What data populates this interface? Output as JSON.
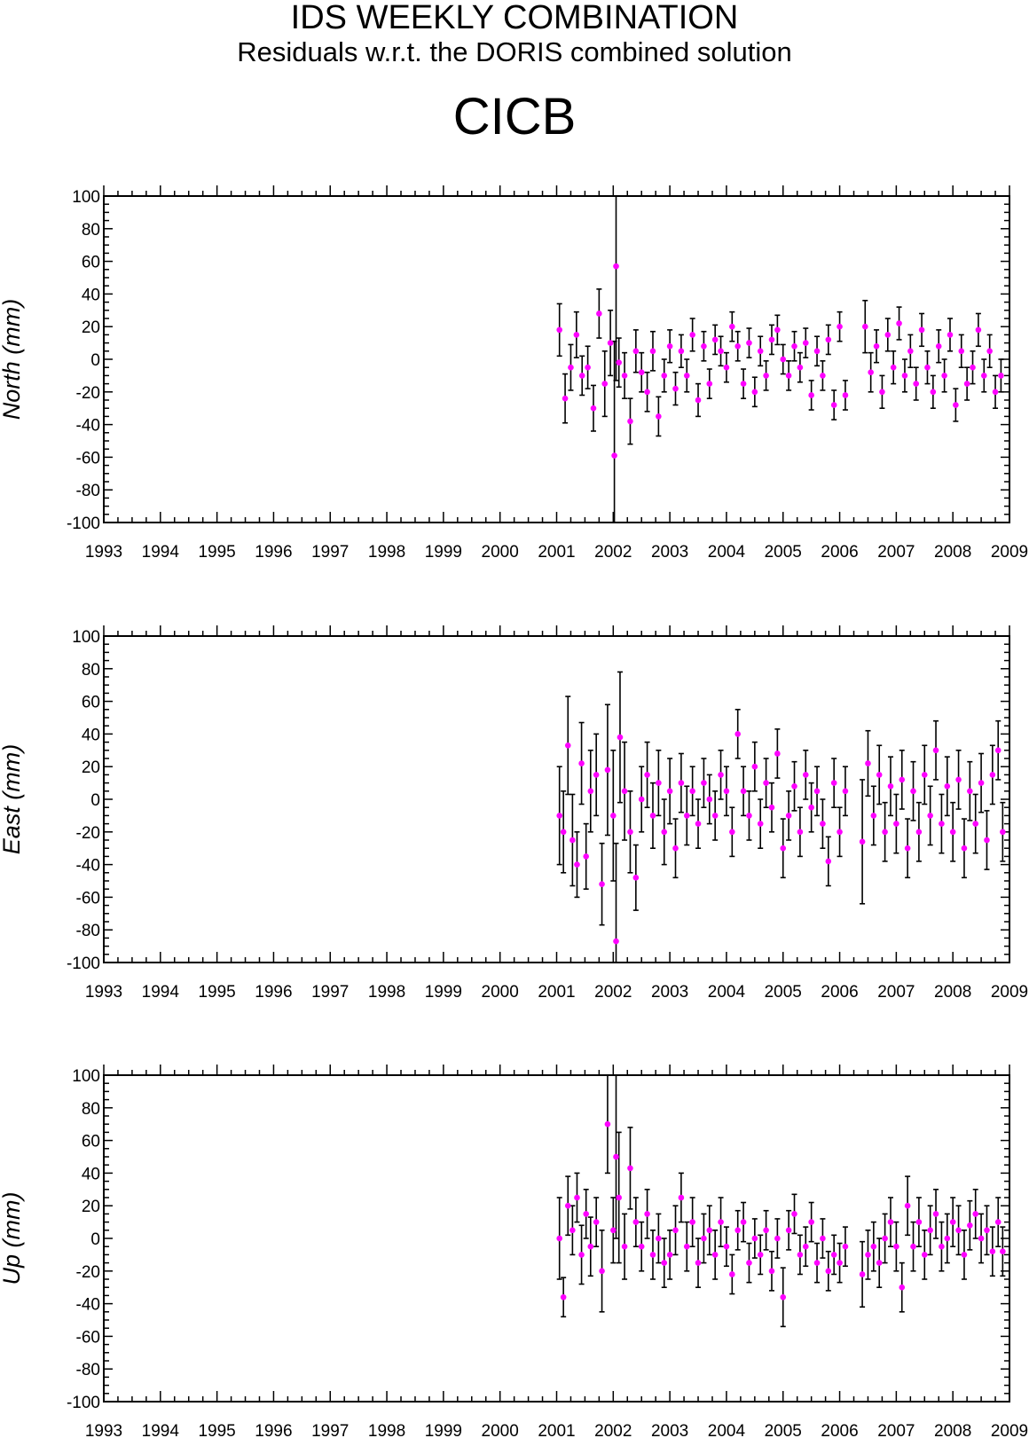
{
  "header": {
    "title": "IDS WEEKLY COMBINATION",
    "subtitle": "Residuals w.r.t. the DORIS combined solution",
    "station": "CICB"
  },
  "colors": {
    "marker": "#ff00ff",
    "errorbar": "#000000",
    "axis": "#000000"
  },
  "chart_data": [
    {
      "type": "scatter",
      "ylabel": "North (mm)",
      "xlim": [
        1993,
        2009
      ],
      "ylim": [
        -100,
        100
      ],
      "xticks": [
        "1993",
        "1994",
        "1995",
        "1996",
        "1997",
        "1998",
        "1999",
        "2000",
        "2001",
        "2002",
        "2003",
        "2004",
        "2005",
        "2006",
        "2007",
        "2008",
        "2009"
      ],
      "yticks": [
        "100",
        "80",
        "60",
        "40",
        "20",
        "0",
        "-20",
        "-40",
        "-60",
        "-80",
        "-100"
      ],
      "grid": false,
      "series": [
        {
          "x": [
            2001.05,
            2001.15,
            2001.25,
            2001.35,
            2001.45,
            2001.55,
            2001.65,
            2001.75,
            2001.85,
            2001.95,
            2002.02,
            2002.05,
            2002.1,
            2002.2,
            2002.3,
            2002.4,
            2002.5,
            2002.6,
            2002.7,
            2002.8,
            2002.9,
            2003.0,
            2003.1,
            2003.2,
            2003.3,
            2003.4,
            2003.5,
            2003.6,
            2003.7,
            2003.8,
            2003.9,
            2004.0,
            2004.1,
            2004.2,
            2004.3,
            2004.4,
            2004.5,
            2004.6,
            2004.7,
            2004.8,
            2004.9,
            2005.0,
            2005.1,
            2005.2,
            2005.3,
            2005.4,
            2005.5,
            2005.6,
            2005.7,
            2005.8,
            2005.9,
            2006.0,
            2006.1,
            2006.45,
            2006.55,
            2006.65,
            2006.75,
            2006.85,
            2006.95,
            2007.05,
            2007.15,
            2007.25,
            2007.35,
            2007.45,
            2007.55,
            2007.65,
            2007.75,
            2007.85,
            2007.95,
            2008.05,
            2008.15,
            2008.25,
            2008.35,
            2008.45,
            2008.55,
            2008.65,
            2008.75,
            2008.85
          ],
          "y": [
            18,
            -24,
            -5,
            15,
            -10,
            -5,
            -30,
            28,
            -15,
            10,
            -59,
            57,
            -2,
            -10,
            -38,
            5,
            -8,
            -20,
            5,
            -35,
            -10,
            8,
            -18,
            5,
            -10,
            15,
            -25,
            8,
            -15,
            12,
            5,
            -5,
            20,
            8,
            -15,
            10,
            -20,
            5,
            -10,
            12,
            18,
            0,
            -10,
            8,
            -5,
            10,
            -22,
            5,
            -10,
            12,
            -28,
            20,
            -22,
            20,
            -8,
            8,
            -20,
            15,
            -5,
            22,
            -10,
            5,
            -15,
            18,
            -5,
            -20,
            8,
            -10,
            15,
            -28,
            5,
            -15,
            -5,
            18,
            -10,
            5,
            -20,
            -10
          ],
          "err": [
            16,
            15,
            14,
            14,
            12,
            13,
            14,
            15,
            20,
            20,
            70,
            70,
            15,
            14,
            14,
            13,
            12,
            12,
            12,
            12,
            10,
            10,
            10,
            10,
            10,
            10,
            10,
            9,
            9,
            9,
            9,
            9,
            9,
            9,
            9,
            9,
            9,
            9,
            9,
            9,
            9,
            9,
            9,
            9,
            9,
            9,
            9,
            9,
            9,
            9,
            9,
            9,
            9,
            16,
            12,
            10,
            10,
            10,
            10,
            10,
            10,
            10,
            10,
            10,
            10,
            10,
            10,
            10,
            10,
            10,
            10,
            10,
            10,
            10,
            10,
            10,
            10,
            10
          ]
        }
      ]
    },
    {
      "type": "scatter",
      "ylabel": "East (mm)",
      "xlim": [
        1993,
        2009
      ],
      "ylim": [
        -100,
        100
      ],
      "xticks": [
        "1993",
        "1994",
        "1995",
        "1996",
        "1997",
        "1998",
        "1999",
        "2000",
        "2001",
        "2002",
        "2003",
        "2004",
        "2005",
        "2006",
        "2007",
        "2008",
        "2009"
      ],
      "yticks": [
        "100",
        "80",
        "60",
        "40",
        "20",
        "0",
        "-20",
        "-40",
        "-60",
        "-80",
        "-100"
      ],
      "grid": false,
      "series": [
        {
          "x": [
            2001.05,
            2001.12,
            2001.2,
            2001.28,
            2001.36,
            2001.44,
            2001.52,
            2001.6,
            2001.7,
            2001.8,
            2001.9,
            2002.0,
            2002.05,
            2002.12,
            2002.2,
            2002.3,
            2002.4,
            2002.5,
            2002.6,
            2002.7,
            2002.8,
            2002.9,
            2003.0,
            2003.1,
            2003.2,
            2003.3,
            2003.4,
            2003.5,
            2003.6,
            2003.7,
            2003.8,
            2003.9,
            2004.0,
            2004.1,
            2004.2,
            2004.3,
            2004.4,
            2004.5,
            2004.6,
            2004.7,
            2004.8,
            2004.9,
            2005.0,
            2005.1,
            2005.2,
            2005.3,
            2005.4,
            2005.5,
            2005.6,
            2005.7,
            2005.8,
            2005.9,
            2006.0,
            2006.1,
            2006.4,
            2006.5,
            2006.6,
            2006.7,
            2006.8,
            2006.9,
            2007.0,
            2007.1,
            2007.2,
            2007.3,
            2007.4,
            2007.5,
            2007.6,
            2007.7,
            2007.8,
            2007.9,
            2008.0,
            2008.1,
            2008.2,
            2008.3,
            2008.4,
            2008.5,
            2008.6,
            2008.7,
            2008.8,
            2008.88
          ],
          "y": [
            -10,
            -20,
            33,
            -25,
            -40,
            22,
            -35,
            5,
            15,
            -52,
            18,
            -10,
            -87,
            38,
            5,
            -20,
            -48,
            0,
            15,
            -10,
            10,
            -20,
            5,
            -30,
            10,
            -10,
            5,
            -15,
            10,
            0,
            -10,
            15,
            5,
            -20,
            40,
            5,
            -10,
            20,
            -15,
            10,
            -5,
            28,
            -30,
            -10,
            8,
            -20,
            15,
            -5,
            5,
            -15,
            -38,
            10,
            -20,
            5,
            -26,
            22,
            -10,
            15,
            -20,
            8,
            -15,
            12,
            -30,
            5,
            -20,
            15,
            -10,
            30,
            -15,
            8,
            -20,
            12,
            -30,
            5,
            -15,
            10,
            -25,
            15,
            30,
            -20
          ],
          "err": [
            30,
            25,
            30,
            28,
            20,
            25,
            20,
            25,
            25,
            25,
            40,
            40,
            60,
            40,
            30,
            25,
            20,
            20,
            20,
            20,
            20,
            20,
            20,
            18,
            18,
            18,
            15,
            15,
            15,
            15,
            15,
            15,
            15,
            15,
            15,
            15,
            15,
            15,
            15,
            15,
            15,
            15,
            18,
            15,
            15,
            15,
            15,
            15,
            15,
            15,
            15,
            15,
            15,
            15,
            38,
            20,
            18,
            18,
            18,
            18,
            18,
            18,
            18,
            18,
            18,
            18,
            18,
            18,
            18,
            18,
            18,
            18,
            18,
            18,
            18,
            18,
            18,
            18,
            18,
            18
          ]
        }
      ]
    },
    {
      "type": "scatter",
      "ylabel": "Up (mm)",
      "xlim": [
        1993,
        2009
      ],
      "ylim": [
        -100,
        100
      ],
      "xticks": [
        "1993",
        "1994",
        "1995",
        "1996",
        "1997",
        "1998",
        "1999",
        "2000",
        "2001",
        "2002",
        "2003",
        "2004",
        "2005",
        "2006",
        "2007",
        "2008",
        "2009"
      ],
      "yticks": [
        "100",
        "80",
        "60",
        "40",
        "20",
        "0",
        "-20",
        "-40",
        "-60",
        "-80",
        "-100"
      ],
      "grid": false,
      "series": [
        {
          "x": [
            2001.05,
            2001.12,
            2001.2,
            2001.28,
            2001.36,
            2001.44,
            2001.52,
            2001.6,
            2001.7,
            2001.8,
            2001.9,
            2002.0,
            2002.05,
            2002.1,
            2002.2,
            2002.3,
            2002.4,
            2002.5,
            2002.6,
            2002.7,
            2002.8,
            2002.9,
            2003.0,
            2003.1,
            2003.2,
            2003.3,
            2003.4,
            2003.5,
            2003.6,
            2003.7,
            2003.8,
            2003.9,
            2004.0,
            2004.1,
            2004.2,
            2004.3,
            2004.4,
            2004.5,
            2004.6,
            2004.7,
            2004.8,
            2004.9,
            2005.0,
            2005.1,
            2005.2,
            2005.3,
            2005.4,
            2005.5,
            2005.6,
            2005.7,
            2005.8,
            2005.9,
            2006.0,
            2006.1,
            2006.4,
            2006.5,
            2006.6,
            2006.7,
            2006.8,
            2006.9,
            2007.0,
            2007.1,
            2007.2,
            2007.3,
            2007.4,
            2007.5,
            2007.6,
            2007.7,
            2007.8,
            2007.9,
            2008.0,
            2008.1,
            2008.2,
            2008.3,
            2008.4,
            2008.5,
            2008.6,
            2008.7,
            2008.8,
            2008.88
          ],
          "y": [
            0,
            -36,
            20,
            5,
            25,
            -10,
            15,
            -5,
            10,
            -20,
            70,
            5,
            50,
            25,
            -5,
            43,
            10,
            -5,
            15,
            -10,
            0,
            -15,
            -10,
            5,
            25,
            -5,
            10,
            -15,
            0,
            5,
            -10,
            10,
            -5,
            -22,
            5,
            10,
            -15,
            0,
            -10,
            5,
            -20,
            0,
            -36,
            5,
            15,
            -10,
            -5,
            10,
            -15,
            0,
            -20,
            -10,
            -15,
            -5,
            -22,
            -10,
            -5,
            -15,
            0,
            10,
            -5,
            -30,
            20,
            -5,
            10,
            -10,
            5,
            15,
            -5,
            0,
            10,
            5,
            -10,
            8,
            15,
            0,
            5,
            -8,
            10,
            -8
          ],
          "err": [
            25,
            12,
            18,
            15,
            15,
            18,
            15,
            18,
            15,
            25,
            30,
            20,
            50,
            40,
            20,
            25,
            15,
            15,
            15,
            15,
            15,
            15,
            15,
            15,
            15,
            15,
            15,
            15,
            15,
            15,
            15,
            15,
            12,
            12,
            12,
            12,
            12,
            12,
            12,
            12,
            12,
            12,
            18,
            12,
            12,
            12,
            12,
            12,
            12,
            12,
            12,
            12,
            12,
            12,
            20,
            15,
            15,
            15,
            15,
            15,
            15,
            15,
            18,
            15,
            15,
            15,
            15,
            15,
            15,
            15,
            15,
            15,
            15,
            15,
            15,
            15,
            15,
            15,
            15,
            15
          ]
        }
      ]
    }
  ]
}
